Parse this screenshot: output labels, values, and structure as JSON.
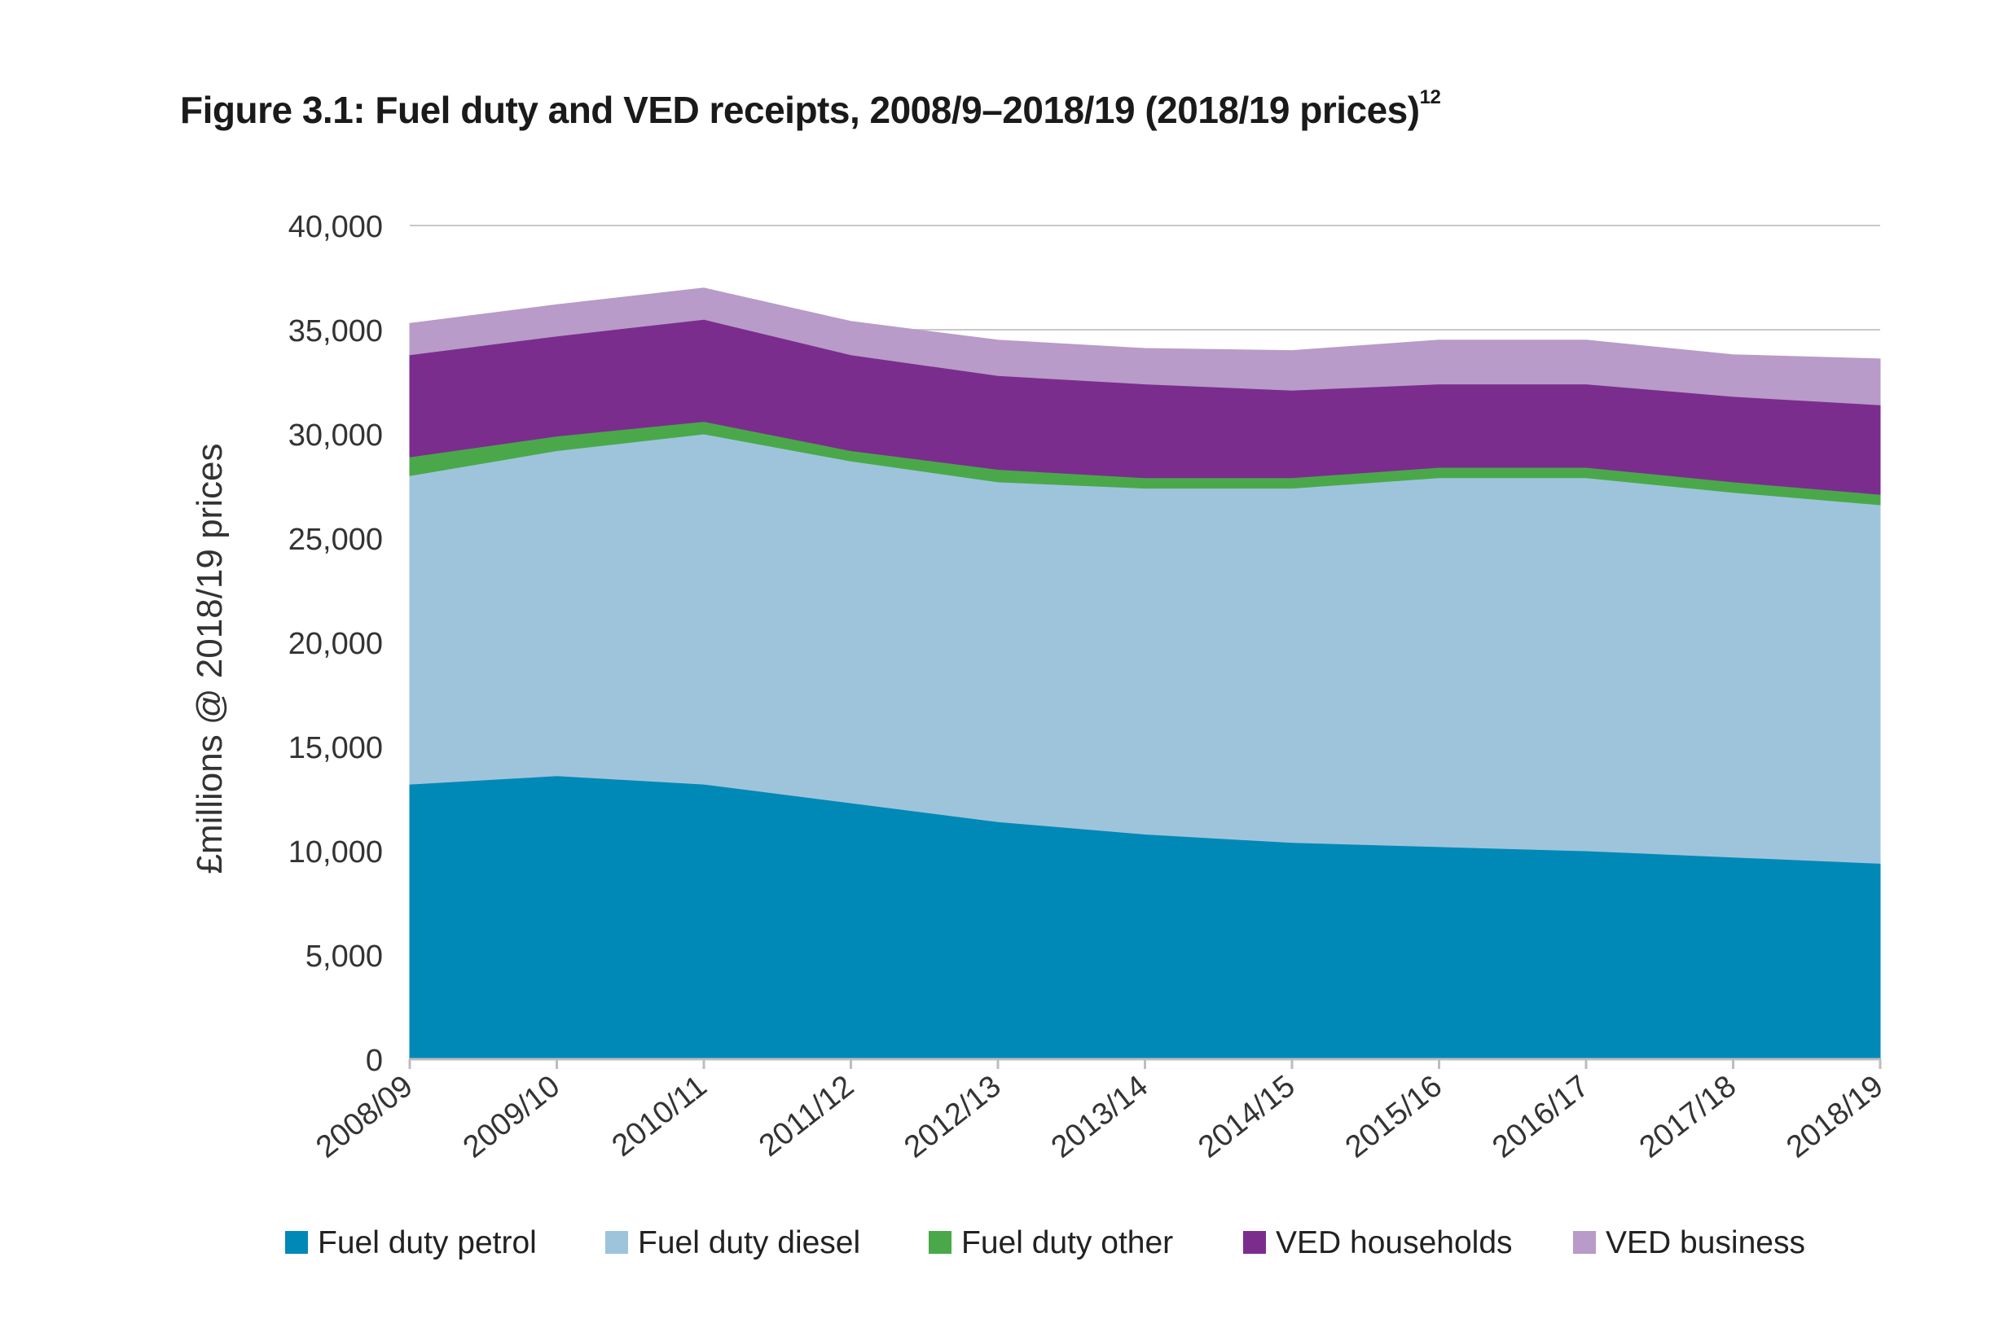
{
  "figure": {
    "title": "Figure 3.1: Fuel duty and VED receipts, 2008/9–2018/19 (2018/19 prices)",
    "title_superscript": "12"
  },
  "chart_data": {
    "type": "area",
    "stacked": true,
    "title": "Figure 3.1: Fuel duty and VED receipts, 2008/9–2018/19 (2018/19 prices)",
    "xlabel": "",
    "ylabel": "£millions @ 2018/19 prices",
    "ylim": [
      0,
      40000
    ],
    "yticks": [
      0,
      5000,
      10000,
      15000,
      20000,
      25000,
      30000,
      35000,
      40000
    ],
    "ytick_labels": [
      "0",
      "5,000",
      "10,000",
      "15,000",
      "20,000",
      "25,000",
      "30,000",
      "35,000",
      "40,000"
    ],
    "grid": "horizontal",
    "legend_position": "bottom",
    "categories": [
      "2008/09",
      "2009/10",
      "2010/11",
      "2011/12",
      "2012/13",
      "2013/14",
      "2014/15",
      "2015/16",
      "2016/17",
      "2017/18",
      "2018/19"
    ],
    "series": [
      {
        "name": "Fuel duty petrol",
        "color": "#0089b7",
        "values": [
          13200,
          13600,
          13200,
          12300,
          11400,
          10800,
          10400,
          10200,
          10000,
          9700,
          9400
        ]
      },
      {
        "name": "Fuel duty diesel",
        "color": "#9ec4dc",
        "values": [
          14800,
          15600,
          16800,
          16400,
          16300,
          16600,
          17000,
          17700,
          17900,
          17500,
          17200
        ]
      },
      {
        "name": "Fuel duty other",
        "color": "#4aa84a",
        "values": [
          900,
          700,
          600,
          500,
          600,
          500,
          500,
          500,
          500,
          500,
          500
        ]
      },
      {
        "name": "VED households",
        "color": "#7b2d8e",
        "values": [
          4900,
          4800,
          4900,
          4600,
          4500,
          4500,
          4200,
          4000,
          4000,
          4100,
          4300
        ]
      },
      {
        "name": "VED business",
        "color": "#b89bc8",
        "values": [
          1500,
          1500,
          1500,
          1600,
          1700,
          1700,
          1900,
          2100,
          2100,
          2000,
          2200
        ]
      }
    ]
  }
}
